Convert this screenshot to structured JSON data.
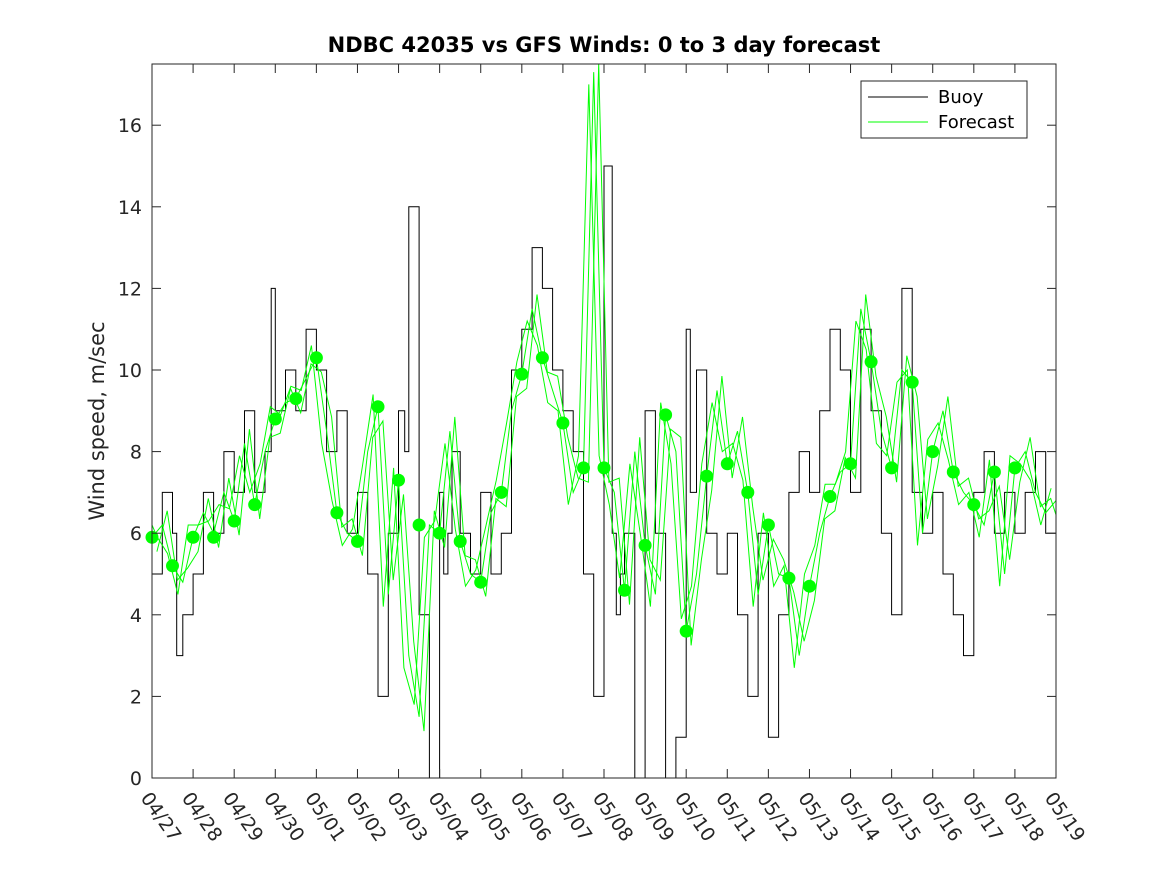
{
  "chart_data": {
    "type": "line",
    "title": "NDBC 42035 vs GFS Winds: 0 to 3 day forecast",
    "xlabel": "",
    "ylabel": "Wind speed, m/sec",
    "ylim": [
      0,
      17.5
    ],
    "yticks": [
      0,
      2,
      4,
      6,
      8,
      10,
      12,
      14,
      16
    ],
    "xlim": [
      "04/27",
      "05/19"
    ],
    "xtick_labels": [
      "04/27",
      "04/28",
      "04/29",
      "04/30",
      "05/01",
      "05/02",
      "05/03",
      "05/04",
      "05/05",
      "05/06",
      "05/07",
      "05/08",
      "05/09",
      "05/10",
      "05/11",
      "05/12",
      "05/13",
      "05/14",
      "05/15",
      "05/16",
      "05/17",
      "05/18",
      "05/19"
    ],
    "grid": false,
    "legend": {
      "placement": "top-right",
      "entries": [
        "Buoy",
        "Forecast"
      ]
    },
    "colors": {
      "buoy": "#000000",
      "forecast": "#00ff00"
    },
    "series": [
      {
        "name": "Buoy",
        "style": "step",
        "x_days": [
          0,
          0.25,
          0.5,
          0.6,
          0.75,
          1,
          1.25,
          1.5,
          1.75,
          2,
          2.25,
          2.5,
          2.75,
          2.9,
          3,
          3.25,
          3.5,
          3.75,
          4,
          4.25,
          4.5,
          4.75,
          5,
          5.25,
          5.5,
          5.75,
          6,
          6.15,
          6.25,
          6.5,
          6.75,
          7,
          7.1,
          7.2,
          7.3,
          7.5,
          7.75,
          8,
          8.25,
          8.5,
          8.75,
          9,
          9.25,
          9.5,
          9.75,
          10,
          10.25,
          10.5,
          10.75,
          11,
          11.2,
          11.3,
          11.4,
          11.5,
          11.75,
          12,
          12.25,
          12.5,
          12.75,
          13,
          13.1,
          13.25,
          13.5,
          13.75,
          14,
          14.25,
          14.5,
          14.75,
          15,
          15.25,
          15.5,
          15.75,
          16,
          16.25,
          16.5,
          16.75,
          17,
          17.25,
          17.5,
          17.75,
          18,
          18.25,
          18.5,
          18.75,
          19,
          19.25,
          19.5,
          19.75,
          20,
          20.25,
          20.5,
          20.75,
          21,
          21.25,
          21.5,
          21.75,
          22
        ],
        "values": [
          5,
          7,
          6,
          3,
          4,
          5,
          7,
          6,
          8,
          7,
          9,
          7,
          8,
          12,
          9,
          10,
          9,
          11,
          10,
          8,
          9,
          6,
          7,
          5,
          2,
          6,
          9,
          8,
          14,
          4,
          0,
          7,
          5,
          6,
          8,
          6,
          5,
          7,
          5,
          6,
          10,
          11,
          13,
          12,
          10,
          9,
          8,
          5,
          2,
          15,
          6,
          4,
          5,
          6,
          0,
          9,
          6,
          0,
          1,
          11,
          7,
          10,
          6,
          5,
          6,
          4,
          2,
          6,
          1,
          4,
          7,
          8,
          7,
          9,
          11,
          10,
          7,
          11,
          9,
          6,
          4,
          12,
          7,
          6,
          7,
          5,
          4,
          3,
          7,
          8,
          6,
          7,
          6,
          7,
          8,
          6,
          6
        ]
      },
      {
        "name": "Forecast",
        "style": "line",
        "x_days": [
          0,
          0.25,
          0.5,
          0.75,
          1,
          1.25,
          1.5,
          1.75,
          2,
          2.25,
          2.5,
          2.75,
          3,
          3.25,
          3.5,
          3.75,
          4,
          4.25,
          4.5,
          4.75,
          5,
          5.25,
          5.5,
          5.75,
          6,
          6.25,
          6.5,
          6.75,
          7,
          7.25,
          7.5,
          7.75,
          8,
          8.25,
          8.5,
          8.75,
          9,
          9.25,
          9.5,
          9.75,
          10,
          10.25,
          10.5,
          10.75,
          11,
          11.25,
          11.5,
          11.75,
          12,
          12.25,
          12.5,
          12.75,
          13,
          13.25,
          13.5,
          13.75,
          14,
          14.25,
          14.5,
          14.75,
          15,
          15.25,
          15.5,
          15.75,
          16,
          16.25,
          16.5,
          16.75,
          17,
          17.25,
          17.5,
          17.75,
          18,
          18.25,
          18.5,
          18.75,
          19,
          19.25,
          19.5,
          19.75,
          20,
          20.25,
          20.5,
          20.75,
          21,
          21.25,
          21.5,
          21.75,
          22
        ],
        "values": [
          5.9,
          6.2,
          5.2,
          4.8,
          5.9,
          6.5,
          6.0,
          7.0,
          6.3,
          8.2,
          6.7,
          8.0,
          8.8,
          9.2,
          9.3,
          9.8,
          10.3,
          8.5,
          6.5,
          6.0,
          5.8,
          8.0,
          9.1,
          4.5,
          7.3,
          3.0,
          1.5,
          6.2,
          6.0,
          8.5,
          5.8,
          5.0,
          4.8,
          6.5,
          7.0,
          9.0,
          9.9,
          11.5,
          10.3,
          9.5,
          8.7,
          7.0,
          7.6,
          17.3,
          7.6,
          7.0,
          4.6,
          8.0,
          5.7,
          4.5,
          8.9,
          8.0,
          3.6,
          5.0,
          7.4,
          9.5,
          7.7,
          8.5,
          7.0,
          4.5,
          6.2,
          5.0,
          4.9,
          3.0,
          4.7,
          6.0,
          6.9,
          7.5,
          7.7,
          11.5,
          10.2,
          8.5,
          7.6,
          10.0,
          9.7,
          6.0,
          8.0,
          9.0,
          7.5,
          7.0,
          6.7,
          6.2,
          7.5,
          5.0,
          7.6,
          8.0,
          7.0,
          6.5,
          6.8
        ]
      },
      {
        "name": "",
        "style": "markers",
        "x_days": [
          0,
          0.5,
          1,
          1.5,
          2,
          2.5,
          3,
          3.5,
          4,
          4.5,
          5,
          5.5,
          6,
          6.5,
          7,
          7.5,
          8,
          8.5,
          9,
          9.5,
          10,
          10.5,
          11,
          11.5,
          12,
          12.5,
          13,
          13.5,
          14,
          14.5,
          15,
          15.5,
          16,
          16.5,
          17,
          17.5,
          18,
          18.5,
          19,
          19.5,
          20,
          20.5,
          21,
          21.5,
          22
        ],
        "values": [
          5.9,
          5.2,
          5.9,
          5.9,
          6.3,
          6.7,
          8.8,
          9.3,
          10.3,
          6.5,
          5.8,
          9.1,
          7.3,
          6.2,
          6.0,
          5.8,
          4.8,
          7.0,
          9.9,
          10.3,
          8.7,
          7.6,
          7.6,
          4.6,
          5.7,
          8.9,
          3.6,
          7.4,
          7.7,
          7.0,
          6.2,
          4.9,
          4.7,
          6.9,
          7.7,
          10.2,
          7.6,
          9.7,
          8.0,
          7.5,
          6.7,
          7.5,
          7.6,
          null,
          null
        ]
      }
    ]
  }
}
